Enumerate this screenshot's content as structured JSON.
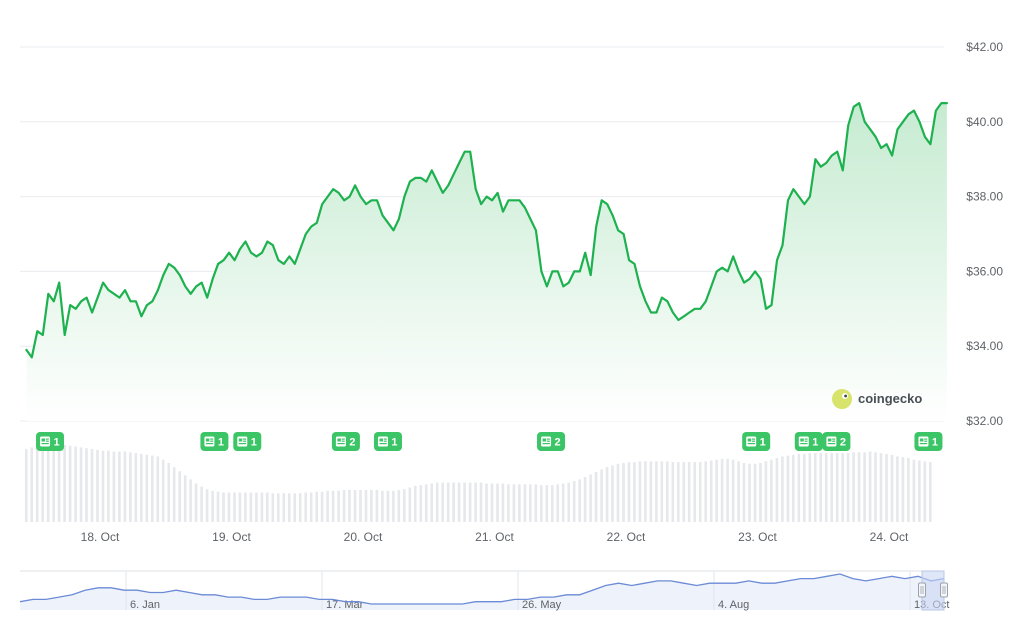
{
  "chart_data": {
    "type": "line",
    "brand": "coingecko",
    "y_ticks": [
      "$32.00",
      "$34.00",
      "$36.00",
      "$38.00",
      "$40.00",
      "$42.00"
    ],
    "ylim": [
      32,
      42
    ],
    "grid": true,
    "x_ticks": [
      "18. Oct",
      "19. Oct",
      "20. Oct",
      "21. Oct",
      "22. Oct",
      "23. Oct",
      "24. Oct"
    ],
    "price_series": {
      "x_start_day": 17.44,
      "x_step_hours": 1,
      "values": [
        33.9,
        33.7,
        34.4,
        34.3,
        35.4,
        35.2,
        35.7,
        34.3,
        35.1,
        35.0,
        35.2,
        35.3,
        34.9,
        35.3,
        35.7,
        35.5,
        35.4,
        35.3,
        35.5,
        35.2,
        35.2,
        34.8,
        35.1,
        35.2,
        35.5,
        35.9,
        36.2,
        36.1,
        35.9,
        35.6,
        35.4,
        35.6,
        35.7,
        35.3,
        35.8,
        36.2,
        36.3,
        36.5,
        36.3,
        36.6,
        36.8,
        36.5,
        36.4,
        36.5,
        36.8,
        36.7,
        36.3,
        36.2,
        36.4,
        36.2,
        36.6,
        37.0,
        37.2,
        37.3,
        37.8,
        38.0,
        38.2,
        38.1,
        37.9,
        38.0,
        38.3,
        38.0,
        37.8,
        37.9,
        37.9,
        37.5,
        37.3,
        37.1,
        37.4,
        38.0,
        38.4,
        38.5,
        38.5,
        38.4,
        38.7,
        38.4,
        38.1,
        38.3,
        38.6,
        38.9,
        39.2,
        39.2,
        38.2,
        37.8,
        38.0,
        37.9,
        38.1,
        37.6,
        37.9,
        37.9,
        37.9,
        37.7,
        37.4,
        37.1,
        36.0,
        35.6,
        36.0,
        36.0,
        35.6,
        35.7,
        36.0,
        36.0,
        36.5,
        35.9,
        37.2,
        37.9,
        37.8,
        37.5,
        37.1,
        37.0,
        36.3,
        36.2,
        35.6,
        35.2,
        34.9,
        34.9,
        35.3,
        35.2,
        34.9,
        34.7,
        34.8,
        34.9,
        35.0,
        35.0,
        35.2,
        35.6,
        36.0,
        36.1,
        36.0,
        36.4,
        36.0,
        35.7,
        35.8,
        36.0,
        35.8,
        35.0,
        35.1,
        36.3,
        36.7,
        37.9,
        38.2,
        38.0,
        37.8,
        38.0,
        39.0,
        38.8,
        38.9,
        39.1,
        39.2,
        38.7,
        39.9,
        40.4,
        40.5,
        40.0,
        39.8,
        39.6,
        39.3,
        39.4,
        39.1,
        39.8,
        40.0,
        40.2,
        40.3,
        40.0,
        39.6,
        39.4,
        40.3,
        40.5,
        40.5
      ]
    },
    "volume_series": {
      "values": [
        0.89,
        0.91,
        0.92,
        0.93,
        0.94,
        0.95,
        0.95,
        0.94,
        0.93,
        0.92,
        0.91,
        0.9,
        0.89,
        0.88,
        0.87,
        0.87,
        0.86,
        0.86,
        0.86,
        0.85,
        0.84,
        0.83,
        0.82,
        0.81,
        0.8,
        0.76,
        0.72,
        0.67,
        0.62,
        0.57,
        0.52,
        0.47,
        0.43,
        0.4,
        0.38,
        0.37,
        0.36,
        0.36,
        0.36,
        0.36,
        0.36,
        0.36,
        0.36,
        0.36,
        0.36,
        0.35,
        0.35,
        0.35,
        0.35,
        0.35,
        0.35,
        0.36,
        0.36,
        0.37,
        0.37,
        0.38,
        0.38,
        0.38,
        0.39,
        0.39,
        0.39,
        0.39,
        0.39,
        0.39,
        0.39,
        0.38,
        0.38,
        0.38,
        0.39,
        0.4,
        0.42,
        0.44,
        0.45,
        0.46,
        0.47,
        0.48,
        0.48,
        0.48,
        0.48,
        0.48,
        0.48,
        0.48,
        0.48,
        0.48,
        0.47,
        0.47,
        0.47,
        0.47,
        0.46,
        0.46,
        0.46,
        0.46,
        0.46,
        0.46,
        0.45,
        0.45,
        0.45,
        0.46,
        0.47,
        0.48,
        0.5,
        0.52,
        0.55,
        0.58,
        0.61,
        0.64,
        0.67,
        0.69,
        0.71,
        0.72,
        0.73,
        0.73,
        0.74,
        0.74,
        0.74,
        0.74,
        0.74,
        0.74,
        0.73,
        0.73,
        0.73,
        0.73,
        0.73,
        0.73,
        0.74,
        0.75,
        0.76,
        0.77,
        0.77,
        0.76,
        0.74,
        0.72,
        0.71,
        0.71,
        0.72,
        0.74,
        0.76,
        0.78,
        0.8,
        0.81,
        0.82,
        0.83,
        0.83,
        0.84,
        0.84,
        0.84,
        0.84,
        0.84,
        0.84,
        0.84,
        0.84,
        0.85,
        0.85,
        0.85,
        0.86,
        0.85,
        0.84,
        0.83,
        0.82,
        0.8,
        0.79,
        0.78,
        0.76,
        0.75,
        0.74,
        0.73
      ]
    },
    "news_badges": [
      {
        "day": 17.62,
        "count": "1"
      },
      {
        "day": 18.87,
        "count": "1"
      },
      {
        "day": 19.12,
        "count": "1"
      },
      {
        "day": 19.87,
        "count": "2"
      },
      {
        "day": 20.19,
        "count": "1"
      },
      {
        "day": 21.43,
        "count": "2"
      },
      {
        "day": 22.99,
        "count": "1"
      },
      {
        "day": 23.39,
        "count": "1"
      },
      {
        "day": 23.6,
        "count": "2"
      },
      {
        "day": 24.3,
        "count": "1"
      }
    ],
    "navigator": {
      "labels": [
        "6. Jan",
        "17. Mar",
        "26. May",
        "4. Aug",
        "13. Oct"
      ],
      "values": [
        32,
        33,
        33,
        34,
        35,
        37,
        38,
        38,
        37,
        37,
        36,
        36,
        37,
        36,
        35,
        35,
        34,
        34,
        33,
        33,
        34,
        34,
        34,
        33,
        33,
        32,
        32,
        31,
        31,
        31,
        31,
        31,
        31,
        31,
        31,
        32,
        32,
        32,
        33,
        33,
        34,
        34,
        35,
        35,
        37,
        39,
        40,
        39,
        40,
        41,
        41,
        40,
        39,
        40,
        40,
        40,
        41,
        40,
        40,
        41,
        42,
        42,
        43,
        44,
        42,
        41,
        42,
        43,
        42,
        43,
        41,
        42
      ]
    },
    "colors": {
      "line": "#1eb14f",
      "fill_top": "#c6ebd1",
      "fill_bottom": "#ffffff",
      "grid": "#e9ecef",
      "volume_bar": "#e6e8eb",
      "badge": "#3cc566",
      "navigator_line": "#6b8bd6",
      "navigator_fill": "#eef2fb",
      "navigator_handle": "#c9d6f2"
    }
  }
}
